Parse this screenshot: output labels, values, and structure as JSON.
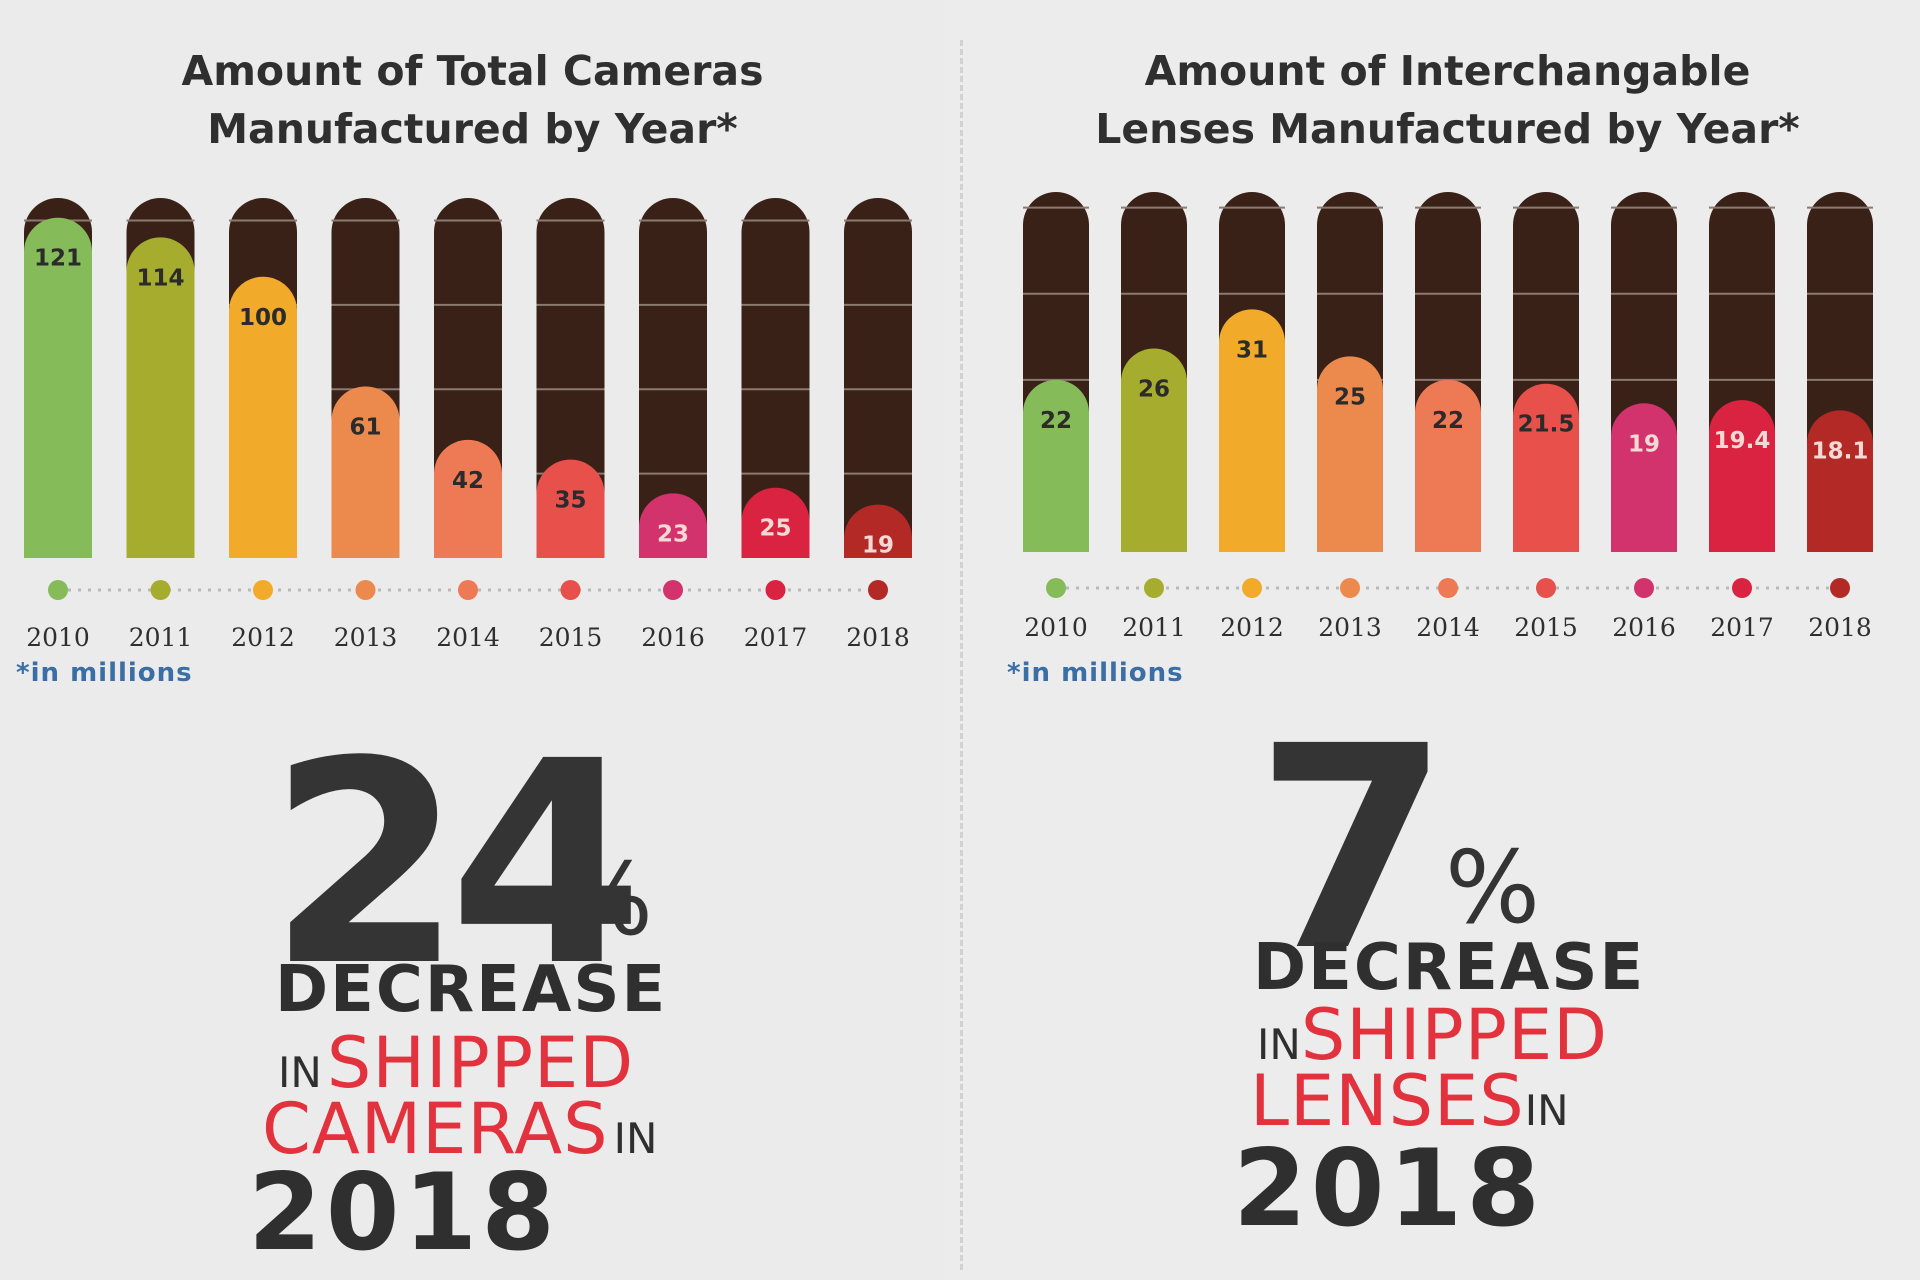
{
  "colors": {
    "dark": "#3a2118",
    "grid": "#8a7a70",
    "bars": [
      "#86bb5a",
      "#a6ac2e",
      "#f2aa2b",
      "#eb8a4c",
      "#ee7a55",
      "#e8504c",
      "#d2336c",
      "#d92340",
      "#b32926"
    ],
    "label_dark": "#2b2b2b",
    "label_light": "#f4d9d5",
    "dot_line": "#b9b9b9"
  },
  "left": {
    "title_line1": "Amount of Total Cameras",
    "title_line2": "Manufactured by Year*",
    "note": "*in millions",
    "stat": {
      "number": "24",
      "pct": "%",
      "decrease": "DECREASE",
      "in1": "IN",
      "word1": "SHIPPED",
      "word2": "CAMERAS",
      "in2": "IN",
      "year": "2018"
    }
  },
  "right": {
    "title_line1": "Amount of Interchangable",
    "title_line2": "Lenses Manufactured by Year*",
    "note": "*in millions",
    "stat": {
      "number": "7",
      "pct": "%",
      "decrease": "DECREASE",
      "in1": "IN",
      "word1": "SHIPPED",
      "word2": "LENSES",
      "in2": "IN",
      "year": "2018"
    }
  },
  "chart_data": [
    {
      "type": "bar",
      "title": "Amount of Total Cameras Manufactured by Year*",
      "categories": [
        "2010",
        "2011",
        "2012",
        "2013",
        "2014",
        "2015",
        "2016",
        "2017",
        "2018"
      ],
      "values": [
        121,
        114,
        100,
        61,
        42,
        35,
        23,
        25,
        19
      ],
      "labels": [
        "121",
        "114",
        "100",
        "61",
        "42",
        "35",
        "23",
        "25",
        "19"
      ],
      "ylabel": "in millions",
      "ylim": [
        0,
        128
      ],
      "grid": true
    },
    {
      "type": "bar",
      "title": "Amount of Interchangable Lenses Manufactured by Year*",
      "categories": [
        "2010",
        "2011",
        "2012",
        "2013",
        "2014",
        "2015",
        "2016",
        "2017",
        "2018"
      ],
      "values": [
        22,
        26,
        31,
        25,
        22,
        21.5,
        19,
        19.4,
        18.1
      ],
      "labels": [
        "22",
        "26",
        "31",
        "25",
        "22",
        "21.5",
        "19",
        "19.4",
        "18.1"
      ],
      "ylabel": "in millions",
      "ylim": [
        0,
        46
      ],
      "grid": true
    }
  ]
}
